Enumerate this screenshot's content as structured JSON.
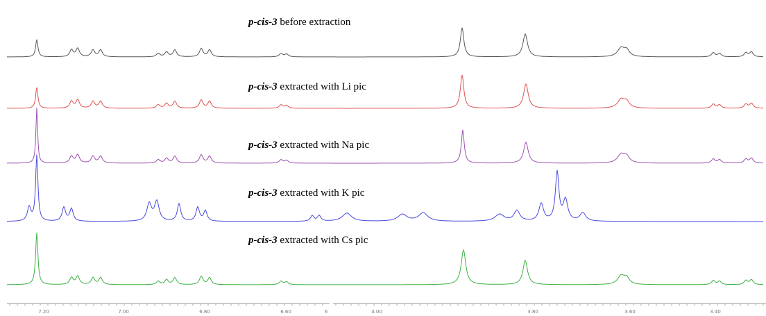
{
  "spectra": [
    {
      "compound": "p-cis-3",
      "label": "before extraction"
    },
    {
      "compound": "p-cis-3",
      "label": "extracted with Li pic"
    },
    {
      "compound": "p-cis-3",
      "label": "extracted with Na pic"
    },
    {
      "compound": "p-cis-3",
      "label": "extracted with K pic"
    },
    {
      "compound": "p-cis-3",
      "label": "extracted with Cs pic"
    }
  ],
  "axis": {
    "left_ticks": [
      "7.20",
      "7.00",
      "6.80",
      "6.60",
      "6"
    ],
    "right_ticks": [
      "4.00",
      "3.80",
      "3.60",
      "3.40"
    ]
  }
}
